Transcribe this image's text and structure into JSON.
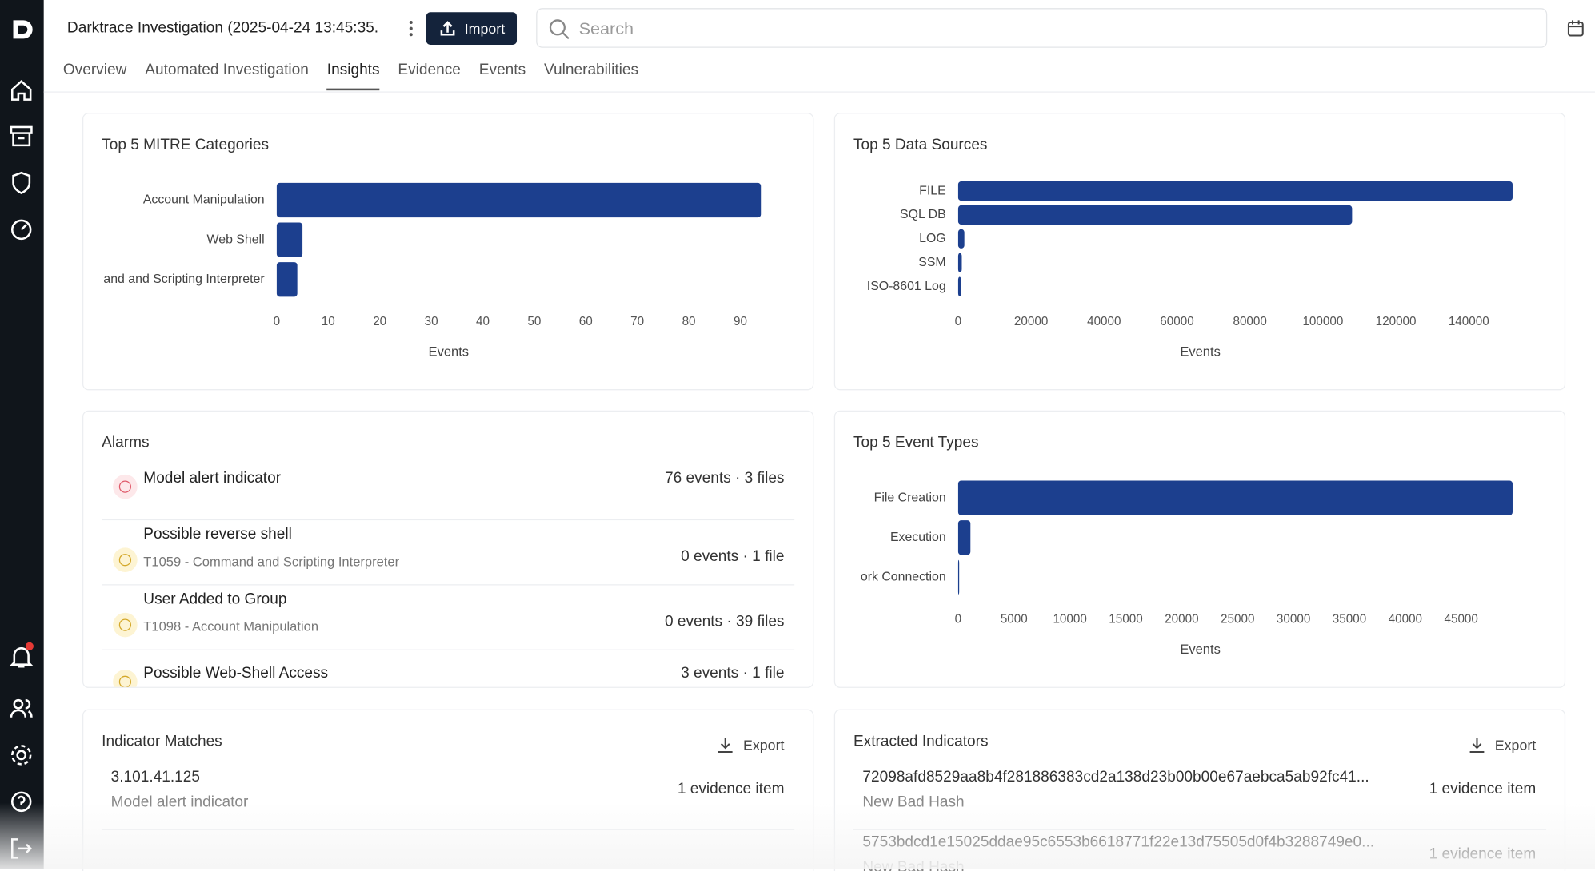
{
  "header": {
    "title": "Darktrace Investigation (2025-04-24 13:45:35.",
    "import": "Import",
    "search": "Search"
  },
  "tabs": [
    "Overview",
    "Automated Investigation",
    "Insights",
    "Evidence",
    "Events",
    "Vulnerabilities"
  ],
  "chart_data": [
    {
      "type": "hbar",
      "title": "Top 5 MITRE Categories",
      "x_label": "Events",
      "color": "#1c3f8e",
      "categories": [
        "Account Manipulation",
        "Web Shell",
        "and and Scripting Interpreter"
      ],
      "values": [
        94,
        5,
        4
      ],
      "xlim": [
        0,
        94
      ],
      "xticks": [
        0,
        10,
        20,
        30,
        40,
        50,
        60,
        70,
        80,
        90
      ]
    },
    {
      "type": "hbar",
      "title": "Top 5 Data Sources",
      "x_label": "Events",
      "color": "#1c3f8e",
      "categories": [
        "FILE",
        "SQL DB",
        "LOG",
        "SSM",
        "ISO-8601 Log"
      ],
      "values": [
        152000,
        108000,
        1700,
        1000,
        800
      ],
      "xlim": [
        0,
        152000
      ],
      "xticks": [
        0,
        20000,
        40000,
        60000,
        80000,
        100000,
        120000,
        140000
      ]
    },
    {
      "type": "hbar",
      "title": "Top 5 Event Types",
      "x_label": "Events",
      "color": "#1c3f8e",
      "categories": [
        "File Creation",
        "Execution",
        "ork Connection"
      ],
      "values": [
        49600,
        1100,
        50
      ],
      "xlim": [
        0,
        49600
      ],
      "xticks": [
        0,
        5000,
        10000,
        15000,
        20000,
        25000,
        30000,
        35000,
        40000,
        45000
      ]
    }
  ],
  "alarms": {
    "title": "Alarms",
    "items": [
      {
        "name": "Model alert indicator",
        "summary": "76 events · 3 files"
      },
      {
        "name": "Possible reverse shell",
        "technique": "T1059 - Command and Scripting Interpreter",
        "summary": "0 events · 1 file"
      },
      {
        "name": "User Added to Group",
        "technique": "T1098 - Account Manipulation",
        "summary": "0 events · 39 files"
      },
      {
        "name": "Possible Web-Shell Access",
        "summary": "3 events · 1 file"
      }
    ]
  },
  "indicator_matches": {
    "title": "Indicator Matches",
    "export": "Export",
    "items": [
      {
        "value": "3.101.41.125",
        "label": "Model alert indicator",
        "count": "1 evidence item"
      }
    ]
  },
  "extracted_indicators": {
    "title": "Extracted Indicators",
    "export": "Export",
    "items": [
      {
        "value": "72098afd8529aa8b4f281886383cd2a138d23b00b00e67aebca5ab92fc41...",
        "label": "New Bad Hash",
        "count": "1 evidence item"
      },
      {
        "value": "5753bdcd1e15025ddae95c6553b6618771f22e13d75505d0f4b3288749e0...",
        "label": "New Bad Hash",
        "count": "1 evidence item"
      }
    ]
  }
}
